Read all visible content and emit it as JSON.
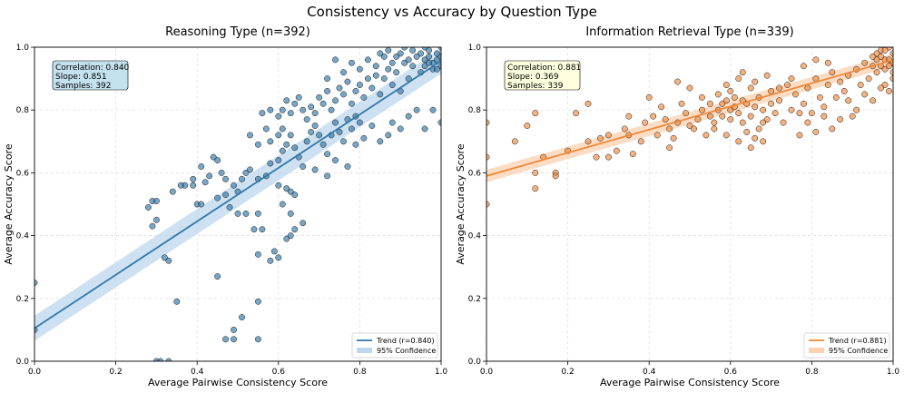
{
  "figure_title": "Consistency vs Accuracy by Question Type",
  "chart_data": [
    {
      "type": "scatter",
      "title": "Reasoning Type (n=392)",
      "xlabel": "Average Pairwise Consistency Score",
      "ylabel": "Average Accuracy Score",
      "xlim": [
        0,
        1
      ],
      "ylim": [
        0,
        1
      ],
      "xticks": [
        "0.0",
        "0.2",
        "0.4",
        "0.6",
        "0.8",
        "1.0"
      ],
      "yticks": [
        "0.0",
        "0.2",
        "0.4",
        "0.6",
        "0.8",
        "1.0"
      ],
      "grid": true,
      "color": "#2f77a8",
      "band_color": "#bcd7ee",
      "trend": {
        "intercept": 0.105,
        "slope": 0.851,
        "band_halfwidth": 0.04
      },
      "stats": [
        "Correlation: 0.840",
        "Slope: 0.851",
        "Samples: 392"
      ],
      "stats_box_color": "#c3e2ee",
      "legend": [
        "Trend (r=0.840)",
        "95% Confidence"
      ],
      "legend_position": "lower right",
      "points": [
        [
          0.0,
          0.25
        ],
        [
          0.0,
          0.1
        ],
        [
          0.29,
          0.51
        ],
        [
          0.3,
          0.51
        ],
        [
          0.28,
          0.49
        ],
        [
          0.3,
          0.45
        ],
        [
          0.29,
          0.43
        ],
        [
          0.32,
          0.33
        ],
        [
          0.33,
          0.32
        ],
        [
          0.35,
          0.19
        ],
        [
          0.3,
          0.0
        ],
        [
          0.31,
          0.0
        ],
        [
          0.33,
          0.0
        ],
        [
          0.37,
          0.56
        ],
        [
          0.39,
          0.58
        ],
        [
          0.41,
          0.62
        ],
        [
          0.4,
          0.5
        ],
        [
          0.41,
          0.5
        ],
        [
          0.42,
          0.57
        ],
        [
          0.44,
          0.65
        ],
        [
          0.45,
          0.64
        ],
        [
          0.46,
          0.6
        ],
        [
          0.47,
          0.58
        ],
        [
          0.49,
          0.56
        ],
        [
          0.45,
          0.52
        ],
        [
          0.48,
          0.49
        ],
        [
          0.5,
          0.47
        ],
        [
          0.52,
          0.47
        ],
        [
          0.54,
          0.42
        ],
        [
          0.55,
          0.47
        ],
        [
          0.56,
          0.42
        ],
        [
          0.55,
          0.19
        ],
        [
          0.51,
          0.14
        ],
        [
          0.49,
          0.1
        ],
        [
          0.47,
          0.07
        ],
        [
          0.49,
          0.07
        ],
        [
          0.55,
          0.07
        ],
        [
          0.45,
          0.27
        ],
        [
          0.55,
          0.34
        ],
        [
          0.58,
          0.32
        ],
        [
          0.59,
          0.35
        ],
        [
          0.6,
          0.33
        ],
        [
          0.62,
          0.39
        ],
        [
          0.63,
          0.4
        ],
        [
          0.64,
          0.42
        ],
        [
          0.66,
          0.44
        ],
        [
          0.63,
          0.47
        ],
        [
          0.61,
          0.5
        ],
        [
          0.6,
          0.56
        ],
        [
          0.62,
          0.55
        ],
        [
          0.63,
          0.54
        ],
        [
          0.64,
          0.53
        ],
        [
          0.55,
          0.58
        ],
        [
          0.57,
          0.59
        ],
        [
          0.52,
          0.6
        ],
        [
          0.58,
          0.63
        ],
        [
          0.6,
          0.64
        ],
        [
          0.61,
          0.67
        ],
        [
          0.62,
          0.69
        ],
        [
          0.63,
          0.72
        ],
        [
          0.64,
          0.68
        ],
        [
          0.65,
          0.65
        ],
        [
          0.66,
          0.62
        ],
        [
          0.67,
          0.7
        ],
        [
          0.68,
          0.73
        ],
        [
          0.69,
          0.75
        ],
        [
          0.7,
          0.72
        ],
        [
          0.71,
          0.69
        ],
        [
          0.72,
          0.66
        ],
        [
          0.73,
          0.72
        ],
        [
          0.74,
          0.76
        ],
        [
          0.75,
          0.73
        ],
        [
          0.76,
          0.7
        ],
        [
          0.77,
          0.77
        ],
        [
          0.78,
          0.74
        ],
        [
          0.79,
          0.78
        ],
        [
          0.8,
          0.76
        ],
        [
          0.6,
          0.78
        ],
        [
          0.61,
          0.8
        ],
        [
          0.62,
          0.83
        ],
        [
          0.63,
          0.79
        ],
        [
          0.64,
          0.82
        ],
        [
          0.65,
          0.84
        ],
        [
          0.66,
          0.8
        ],
        [
          0.67,
          0.77
        ],
        [
          0.68,
          0.81
        ],
        [
          0.69,
          0.79
        ],
        [
          0.7,
          0.84
        ],
        [
          0.71,
          0.82
        ],
        [
          0.72,
          0.86
        ],
        [
          0.73,
          0.8
        ],
        [
          0.74,
          0.83
        ],
        [
          0.75,
          0.87
        ],
        [
          0.76,
          0.85
        ],
        [
          0.77,
          0.89
        ],
        [
          0.78,
          0.82
        ],
        [
          0.79,
          0.86
        ],
        [
          0.8,
          0.88
        ],
        [
          0.81,
          0.84
        ],
        [
          0.82,
          0.9
        ],
        [
          0.83,
          0.87
        ],
        [
          0.84,
          0.91
        ],
        [
          0.85,
          0.85
        ],
        [
          0.86,
          0.9
        ],
        [
          0.87,
          0.93
        ],
        [
          0.88,
          0.88
        ],
        [
          0.89,
          0.92
        ],
        [
          0.9,
          0.86
        ],
        [
          0.91,
          0.95
        ],
        [
          0.92,
          0.9
        ],
        [
          0.93,
          0.94
        ],
        [
          0.94,
          0.97
        ],
        [
          0.95,
          0.92
        ],
        [
          0.96,
          0.96
        ],
        [
          0.97,
          0.99
        ],
        [
          0.98,
          0.95
        ],
        [
          0.99,
          0.98
        ],
        [
          1.0,
          1.0
        ],
        [
          0.96,
          1.0
        ],
        [
          0.97,
          0.97
        ],
        [
          0.98,
          0.93
        ],
        [
          0.99,
          0.96
        ],
        [
          1.0,
          0.97
        ],
        [
          0.95,
          0.98
        ],
        [
          0.96,
          0.94
        ],
        [
          0.97,
          0.95
        ],
        [
          1.0,
          0.94
        ],
        [
          0.99,
          0.93
        ],
        [
          0.87,
          0.72
        ],
        [
          0.88,
          0.76
        ],
        [
          0.9,
          0.74
        ],
        [
          0.92,
          0.78
        ],
        [
          0.94,
          0.8
        ],
        [
          0.96,
          0.74
        ],
        [
          0.98,
          0.8
        ],
        [
          1.0,
          0.76
        ],
        [
          0.85,
          0.7
        ],
        [
          0.83,
          0.75
        ],
        [
          0.81,
          0.71
        ],
        [
          0.79,
          0.69
        ],
        [
          0.77,
          0.62
        ],
        [
          0.74,
          0.64
        ],
        [
          0.72,
          0.59
        ],
        [
          0.69,
          0.61
        ],
        [
          0.53,
          0.72
        ],
        [
          0.55,
          0.69
        ],
        [
          0.57,
          0.74
        ],
        [
          0.58,
          0.7
        ],
        [
          0.56,
          0.79
        ],
        [
          0.58,
          0.8
        ],
        [
          0.6,
          0.72
        ],
        [
          0.61,
          0.74
        ],
        [
          0.5,
          0.54
        ],
        [
          0.51,
          0.58
        ],
        [
          0.53,
          0.61
        ],
        [
          0.47,
          0.53
        ],
        [
          0.43,
          0.59
        ],
        [
          0.39,
          0.56
        ],
        [
          0.36,
          0.56
        ],
        [
          0.34,
          0.54
        ],
        [
          0.78,
          0.95
        ],
        [
          0.8,
          0.93
        ],
        [
          0.82,
          0.96
        ],
        [
          0.84,
          0.94
        ],
        [
          0.76,
          0.92
        ],
        [
          0.74,
          0.96
        ],
        [
          0.72,
          0.9
        ],
        [
          0.86,
          0.97
        ],
        [
          0.88,
          0.95
        ],
        [
          0.9,
          0.98
        ],
        [
          0.92,
          0.96
        ],
        [
          0.93,
          0.99
        ],
        [
          0.91,
          1.0
        ],
        [
          0.89,
          0.97
        ],
        [
          0.87,
          0.99
        ],
        [
          0.85,
          0.98
        ]
      ]
    },
    {
      "type": "scatter",
      "title": "Information Retrieval Type (n=339)",
      "xlabel": "Average Pairwise Consistency Score",
      "ylabel": "Average Accuracy Score",
      "xlim": [
        0,
        1
      ],
      "ylim": [
        0,
        1
      ],
      "xticks": [
        "0.0",
        "0.2",
        "0.4",
        "0.6",
        "0.8",
        "1.0"
      ],
      "yticks": [
        "0.0",
        "0.2",
        "0.4",
        "0.6",
        "0.8",
        "1.0"
      ],
      "grid": true,
      "color": "#f0883a",
      "band_color": "#fbd2b0",
      "trend": {
        "intercept": 0.59,
        "slope": 0.369,
        "band_halfwidth": 0.02
      },
      "stats": [
        "Correlation: 0.881",
        "Slope: 0.369",
        "Samples: 339"
      ],
      "stats_box_color": "#ffffe0",
      "legend": [
        "Trend (r=0.881)",
        "95% Confidence"
      ],
      "legend_position": "lower right",
      "points": [
        [
          0.0,
          0.76
        ],
        [
          0.0,
          0.65
        ],
        [
          0.0,
          0.5
        ],
        [
          0.07,
          0.7
        ],
        [
          0.1,
          0.75
        ],
        [
          0.12,
          0.79
        ],
        [
          0.12,
          0.55
        ],
        [
          0.12,
          0.6
        ],
        [
          0.14,
          0.65
        ],
        [
          0.17,
          0.6
        ],
        [
          0.17,
          0.59
        ],
        [
          0.2,
          0.67
        ],
        [
          0.22,
          0.79
        ],
        [
          0.25,
          0.82
        ],
        [
          0.25,
          0.7
        ],
        [
          0.27,
          0.65
        ],
        [
          0.28,
          0.71
        ],
        [
          0.3,
          0.72
        ],
        [
          0.3,
          0.65
        ],
        [
          0.32,
          0.67
        ],
        [
          0.34,
          0.74
        ],
        [
          0.35,
          0.78
        ],
        [
          0.35,
          0.72
        ],
        [
          0.36,
          0.66
        ],
        [
          0.38,
          0.7
        ],
        [
          0.39,
          0.76
        ],
        [
          0.4,
          0.84
        ],
        [
          0.41,
          0.78
        ],
        [
          0.42,
          0.72
        ],
        [
          0.43,
          0.81
        ],
        [
          0.44,
          0.77
        ],
        [
          0.45,
          0.74
        ],
        [
          0.45,
          0.68
        ],
        [
          0.46,
          0.71
        ],
        [
          0.47,
          0.89
        ],
        [
          0.48,
          0.82
        ],
        [
          0.49,
          0.79
        ],
        [
          0.5,
          0.75
        ],
        [
          0.51,
          0.74
        ],
        [
          0.52,
          0.77
        ],
        [
          0.53,
          0.8
        ],
        [
          0.54,
          0.72
        ],
        [
          0.55,
          0.82
        ],
        [
          0.55,
          0.78
        ],
        [
          0.56,
          0.76
        ],
        [
          0.57,
          0.85
        ],
        [
          0.57,
          0.8
        ],
        [
          0.58,
          0.82
        ],
        [
          0.58,
          0.78
        ],
        [
          0.59,
          0.88
        ],
        [
          0.59,
          0.83
        ],
        [
          0.6,
          0.86
        ],
        [
          0.6,
          0.8
        ],
        [
          0.6,
          0.77
        ],
        [
          0.61,
          0.84
        ],
        [
          0.61,
          0.81
        ],
        [
          0.62,
          0.9
        ],
        [
          0.62,
          0.79
        ],
        [
          0.63,
          0.83
        ],
        [
          0.63,
          0.76
        ],
        [
          0.64,
          0.82
        ],
        [
          0.64,
          0.73
        ],
        [
          0.65,
          0.87
        ],
        [
          0.65,
          0.78
        ],
        [
          0.66,
          0.81
        ],
        [
          0.66,
          0.71
        ],
        [
          0.67,
          0.84
        ],
        [
          0.67,
          0.74
        ],
        [
          0.68,
          0.8
        ],
        [
          0.68,
          0.7
        ],
        [
          0.69,
          0.77
        ],
        [
          0.7,
          0.86
        ],
        [
          0.7,
          0.82
        ],
        [
          0.71,
          0.79
        ],
        [
          0.72,
          0.83
        ],
        [
          0.73,
          0.76
        ],
        [
          0.74,
          0.88
        ],
        [
          0.75,
          0.8
        ],
        [
          0.76,
          0.85
        ],
        [
          0.77,
          0.72
        ],
        [
          0.78,
          0.82
        ],
        [
          0.79,
          0.87
        ],
        [
          0.8,
          0.79
        ],
        [
          0.81,
          0.9
        ],
        [
          0.82,
          0.84
        ],
        [
          0.83,
          0.81
        ],
        [
          0.84,
          0.88
        ],
        [
          0.85,
          0.92
        ],
        [
          0.86,
          0.84
        ],
        [
          0.87,
          0.89
        ],
        [
          0.88,
          0.86
        ],
        [
          0.89,
          0.91
        ],
        [
          0.9,
          0.78
        ],
        [
          0.91,
          0.93
        ],
        [
          0.92,
          0.88
        ],
        [
          0.93,
          0.95
        ],
        [
          0.94,
          0.9
        ],
        [
          0.95,
          0.97
        ],
        [
          0.96,
          0.92
        ],
        [
          0.97,
          0.99
        ],
        [
          0.98,
          0.96
        ],
        [
          0.99,
          1.0
        ],
        [
          1.0,
          0.98
        ],
        [
          0.96,
          0.98
        ],
        [
          0.97,
          0.94
        ],
        [
          0.98,
          0.99
        ],
        [
          0.99,
          0.96
        ],
        [
          1.0,
          0.95
        ],
        [
          0.95,
          0.94
        ],
        [
          0.96,
          0.96
        ],
        [
          0.97,
          0.97
        ],
        [
          0.98,
          0.93
        ],
        [
          0.99,
          0.94
        ],
        [
          1.0,
          0.92
        ],
        [
          0.98,
          0.88
        ],
        [
          0.99,
          0.86
        ],
        [
          1.0,
          0.9
        ],
        [
          0.97,
          0.87
        ],
        [
          0.95,
          0.83
        ],
        [
          0.93,
          0.85
        ],
        [
          0.91,
          0.8
        ],
        [
          0.89,
          0.83
        ],
        [
          0.87,
          0.77
        ],
        [
          0.85,
          0.74
        ],
        [
          0.83,
          0.78
        ],
        [
          0.81,
          0.73
        ],
        [
          0.79,
          0.76
        ],
        [
          0.77,
          0.79
        ],
        [
          0.59,
          0.72
        ],
        [
          0.62,
          0.7
        ],
        [
          0.65,
          0.68
        ],
        [
          0.68,
          0.76
        ],
        [
          0.56,
          0.74
        ],
        [
          0.53,
          0.84
        ],
        [
          0.5,
          0.87
        ],
        [
          0.47,
          0.76
        ],
        [
          0.63,
          0.92
        ],
        [
          0.66,
          0.89
        ],
        [
          0.69,
          0.91
        ],
        [
          0.72,
          0.87
        ],
        [
          0.75,
          0.9
        ],
        [
          0.78,
          0.94
        ],
        [
          0.81,
          0.96
        ],
        [
          0.84,
          0.95
        ]
      ]
    }
  ]
}
